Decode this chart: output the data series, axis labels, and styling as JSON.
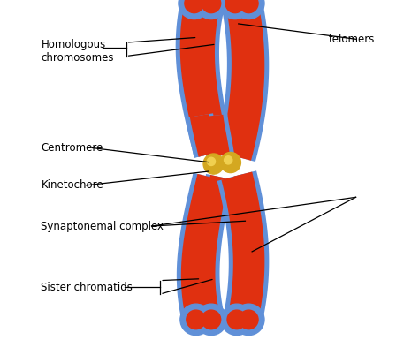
{
  "background_color": "#ffffff",
  "red_color": "#e03010",
  "blue_color": "#6090d8",
  "blue_dark": "#4070c0",
  "gold_color": "#f0d050",
  "gold_dark": "#d4a820",
  "label_color": "#000000",
  "labels": {
    "homologous": "Homologous\nchromosomes",
    "telomers": "telomers",
    "centromere": "Centromere",
    "kinetochore": "Kinetochore",
    "synaptonemal": "Synaptonemal complex",
    "sister": "Sister chromatids"
  },
  "figsize": [
    4.74,
    3.85
  ],
  "dpi": 100
}
